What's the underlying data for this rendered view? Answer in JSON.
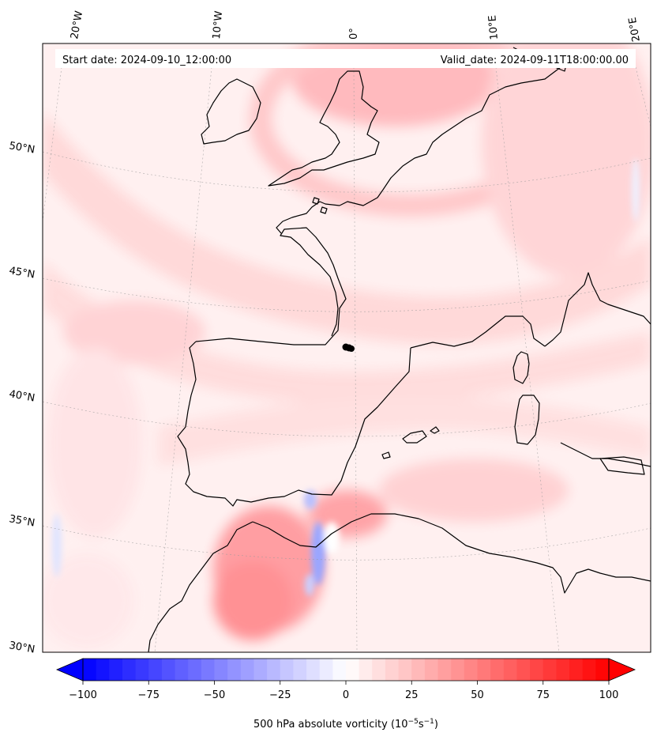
{
  "header": {
    "start_date": "Start date: 2024-09-10_12:00:00",
    "valid_date": "Valid_date: 2024-09-11T18:00:00.00"
  },
  "grid_labels": {
    "lon_20w": "20°W",
    "lon_10w": "10°W",
    "lon_0": "0°",
    "lon_10e": "10°E",
    "lon_20e": "20°E",
    "lat_50n": "50°N",
    "lat_45n": "45°N",
    "lat_40n": "40°N",
    "lat_35n": "35°N",
    "lat_30n": "30°N"
  },
  "colorbar": {
    "ticks": [
      "−100",
      "−75",
      "−50",
      "−25",
      "0",
      "25",
      "50",
      "75",
      "100"
    ],
    "tick_values": [
      -100,
      -75,
      -50,
      -25,
      0,
      25,
      50,
      75,
      100
    ],
    "range": [
      -100,
      100
    ],
    "levels": 40,
    "extend": "both",
    "cmap": "bwr",
    "label": "500 hPa absolute vorticity (10",
    "label_exp1": "−5",
    "label_mid": "s",
    "label_exp2": "−1",
    "label_end": ")"
  },
  "colors": {
    "negative": "#0000ff",
    "positive": "#ff0000",
    "coast": "#000000",
    "marker": "#000000"
  },
  "marker": {
    "shape": "dot"
  }
}
